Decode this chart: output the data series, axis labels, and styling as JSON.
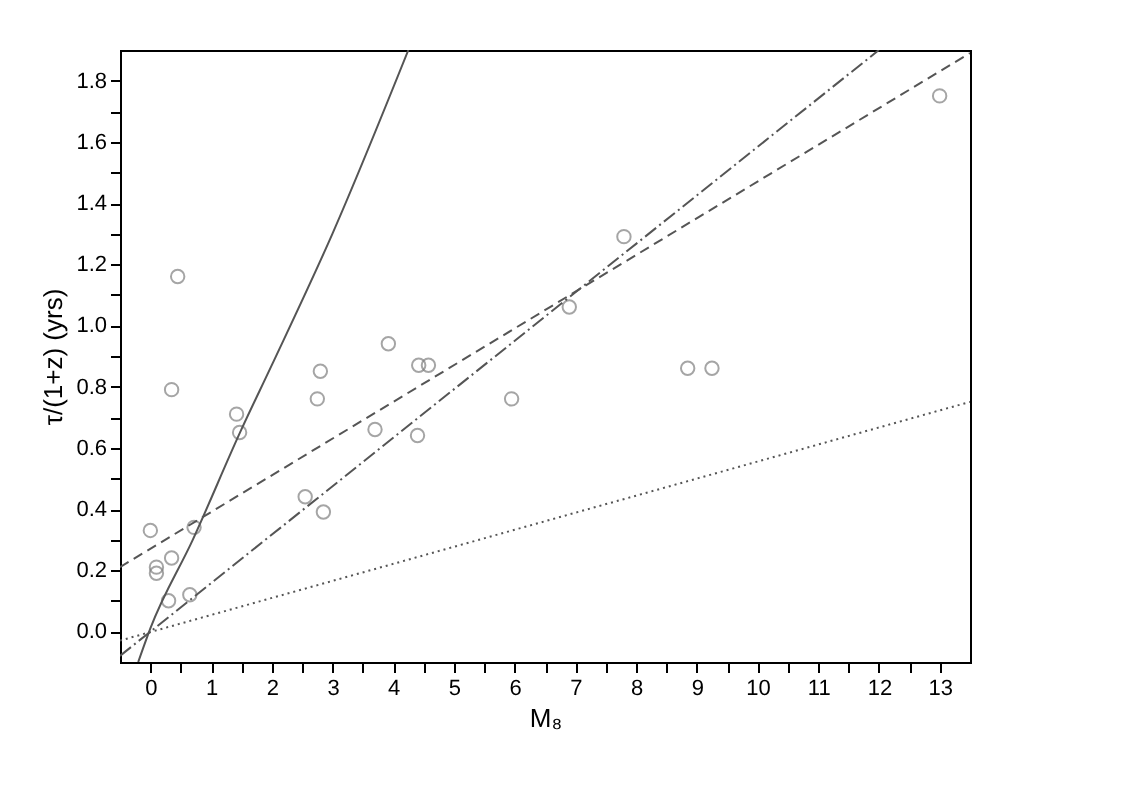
{
  "chart_data": {
    "type": "scatter",
    "xlabel": "M₈",
    "ylabel": "τ/(1+z) (yrs)",
    "xlim": [
      -0.5,
      13.5
    ],
    "xticks": [
      0,
      {
        "value": 0.5,
        "label": null
      },
      1,
      {
        "value": 1.5,
        "label": null
      },
      2,
      {
        "value": 2.5,
        "label": null
      },
      3,
      {
        "value": 3.5,
        "label": null
      },
      4,
      {
        "value": 4.5,
        "label": null
      },
      5,
      {
        "value": 5.5,
        "label": null
      },
      6,
      {
        "value": 6.5,
        "label": null
      },
      7,
      {
        "value": 7.5,
        "label": null
      },
      8,
      {
        "value": 8.5,
        "label": null
      },
      9,
      {
        "value": 9.5,
        "label": null
      },
      10,
      {
        "value": 10.5,
        "label": null
      },
      11,
      {
        "value": 11.5,
        "label": null
      },
      12,
      {
        "value": 12.5,
        "label": null
      },
      13
    ],
    "ylim": [
      -0.1,
      1.9
    ],
    "yticks": [
      {
        "value": 0,
        "label": "0.0"
      },
      {
        "value": 0.1,
        "label": null
      },
      {
        "value": 0.2,
        "label": "0.2"
      },
      {
        "value": 0.3,
        "label": null
      },
      {
        "value": 0.4,
        "label": "0.4"
      },
      {
        "value": 0.5,
        "label": null
      },
      {
        "value": 0.6,
        "label": "0.6"
      },
      {
        "value": 0.7,
        "label": null
      },
      {
        "value": 0.8,
        "label": "0.8"
      },
      {
        "value": 0.9,
        "label": null
      },
      {
        "value": 1.0,
        "label": "1.0"
      },
      {
        "value": 1.1,
        "label": null
      },
      {
        "value": 1.2,
        "label": "1.2"
      },
      {
        "value": 1.3,
        "label": null
      },
      {
        "value": 1.4,
        "label": "1.4"
      },
      {
        "value": 1.5,
        "label": null
      },
      {
        "value": 1.6,
        "label": "1.6"
      },
      {
        "value": 1.7,
        "label": null
      },
      {
        "value": 1.8,
        "label": "1.8"
      }
    ],
    "grid": false,
    "series": [
      {
        "marker": "circle",
        "color": "#808080",
        "x": [
          0,
          0.1,
          0.1,
          0.3,
          0.35,
          0.35,
          0.45,
          0.65,
          0.72,
          1.42,
          1.47,
          2.55,
          2.75,
          2.8,
          2.85,
          3.7,
          3.92,
          4.4,
          4.42,
          4.58,
          5.95,
          6.9,
          7.8,
          8.85,
          9.25,
          13.0
        ],
        "values": [
          0.33,
          0.21,
          0.19,
          0.1,
          0.24,
          0.79,
          1.16,
          0.12,
          0.34,
          0.71,
          0.65,
          0.44,
          0.76,
          0.85,
          0.39,
          0.66,
          0.94,
          0.64,
          0.87,
          0.87,
          0.76,
          1.06,
          1.29,
          0.86,
          0.86,
          1.75
        ]
      },
      {
        "type": "line",
        "line_style": "solid",
        "color": "#555555",
        "x": [
          -0.2,
          0,
          0.7,
          1.5,
          2,
          3,
          4.25
        ],
        "values": [
          -0.1,
          0.01,
          0.3,
          0.66,
          0.87,
          1.3,
          1.9
        ]
      },
      {
        "type": "line",
        "line_style": "dashdot",
        "color": "#555555",
        "x": [
          -0.5,
          12.0
        ],
        "values": [
          -0.08,
          1.9
        ]
      },
      {
        "type": "line",
        "line_style": "dashed",
        "color": "#555555",
        "x": [
          -0.5,
          13.5
        ],
        "values": [
          0.21,
          1.89
        ]
      },
      {
        "type": "line",
        "line_style": "dotted",
        "color": "#555555",
        "x": [
          -0.5,
          13.5
        ],
        "values": [
          -0.03,
          0.75
        ]
      }
    ]
  }
}
